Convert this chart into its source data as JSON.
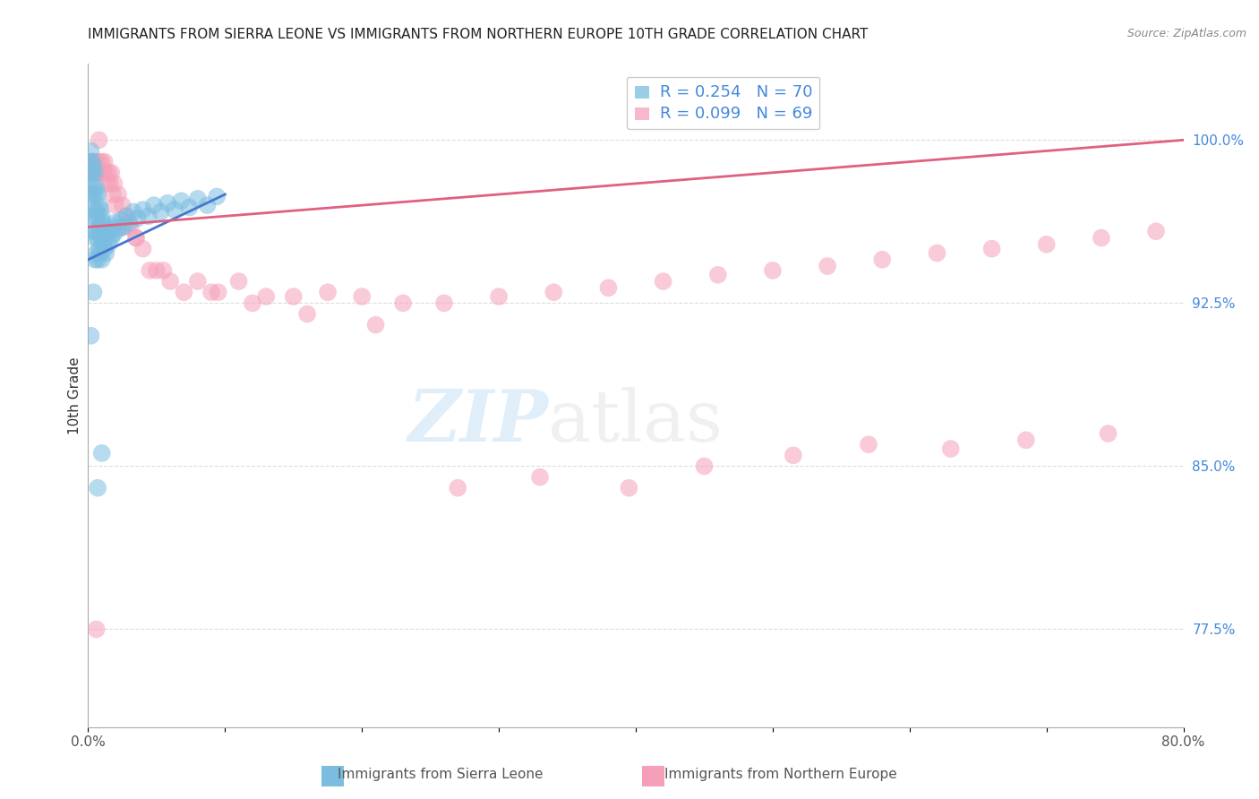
{
  "title": "IMMIGRANTS FROM SIERRA LEONE VS IMMIGRANTS FROM NORTHERN EUROPE 10TH GRADE CORRELATION CHART",
  "source": "Source: ZipAtlas.com",
  "ylabel": "10th Grade",
  "right_ytick_labels": [
    "100.0%",
    "92.5%",
    "85.0%",
    "77.5%"
  ],
  "right_ytick_values": [
    1.0,
    0.925,
    0.85,
    0.775
  ],
  "legend_entry_1": "R = 0.254   N = 70",
  "legend_entry_2": "R = 0.099   N = 69",
  "sierra_leone_color": "#7bbde0",
  "northern_europe_color": "#f5a0b8",
  "sierra_leone_line_color": "#4477cc",
  "northern_europe_line_color": "#e06080",
  "background_color": "#ffffff",
  "grid_color": "#dddddd",
  "title_fontsize": 11,
  "xlim": [
    0.0,
    0.8
  ],
  "ylim": [
    0.73,
    1.035
  ],
  "sl_line_x0": 0.0,
  "sl_line_y0": 0.945,
  "sl_line_x1": 0.1,
  "sl_line_y1": 0.975,
  "ne_line_x0": 0.0,
  "ne_line_y0": 0.96,
  "ne_line_x1": 0.8,
  "ne_line_y1": 1.0,
  "sierra_leone_x": [
    0.001,
    0.001,
    0.002,
    0.002,
    0.002,
    0.003,
    0.003,
    0.003,
    0.003,
    0.004,
    0.004,
    0.004,
    0.004,
    0.005,
    0.005,
    0.005,
    0.005,
    0.005,
    0.006,
    0.006,
    0.006,
    0.006,
    0.007,
    0.007,
    0.007,
    0.007,
    0.008,
    0.008,
    0.008,
    0.009,
    0.009,
    0.009,
    0.01,
    0.01,
    0.01,
    0.011,
    0.011,
    0.012,
    0.012,
    0.013,
    0.013,
    0.014,
    0.015,
    0.016,
    0.017,
    0.018,
    0.019,
    0.02,
    0.022,
    0.024,
    0.026,
    0.028,
    0.03,
    0.033,
    0.036,
    0.04,
    0.044,
    0.048,
    0.053,
    0.058,
    0.063,
    0.068,
    0.074,
    0.08,
    0.087,
    0.094,
    0.01,
    0.007,
    0.004,
    0.002
  ],
  "sierra_leone_y": [
    0.99,
    0.98,
    0.995,
    0.985,
    0.975,
    0.99,
    0.985,
    0.975,
    0.965,
    0.988,
    0.978,
    0.968,
    0.958,
    0.985,
    0.975,
    0.965,
    0.955,
    0.945,
    0.978,
    0.968,
    0.958,
    0.948,
    0.975,
    0.965,
    0.955,
    0.945,
    0.97,
    0.96,
    0.95,
    0.968,
    0.958,
    0.948,
    0.965,
    0.955,
    0.945,
    0.962,
    0.952,
    0.96,
    0.95,
    0.958,
    0.948,
    0.955,
    0.952,
    0.958,
    0.955,
    0.96,
    0.957,
    0.962,
    0.959,
    0.963,
    0.96,
    0.965,
    0.962,
    0.967,
    0.964,
    0.968,
    0.965,
    0.97,
    0.967,
    0.971,
    0.968,
    0.972,
    0.969,
    0.973,
    0.97,
    0.974,
    0.856,
    0.84,
    0.93,
    0.91
  ],
  "northern_europe_x": [
    0.002,
    0.003,
    0.004,
    0.005,
    0.006,
    0.007,
    0.008,
    0.009,
    0.01,
    0.011,
    0.012,
    0.013,
    0.014,
    0.015,
    0.016,
    0.017,
    0.018,
    0.019,
    0.02,
    0.022,
    0.025,
    0.028,
    0.031,
    0.035,
    0.04,
    0.045,
    0.05,
    0.06,
    0.07,
    0.08,
    0.095,
    0.11,
    0.13,
    0.15,
    0.175,
    0.2,
    0.23,
    0.26,
    0.3,
    0.34,
    0.38,
    0.42,
    0.46,
    0.5,
    0.54,
    0.58,
    0.62,
    0.66,
    0.7,
    0.74,
    0.78,
    0.025,
    0.035,
    0.055,
    0.09,
    0.12,
    0.16,
    0.21,
    0.27,
    0.33,
    0.395,
    0.45,
    0.515,
    0.57,
    0.63,
    0.685,
    0.745,
    0.008,
    0.006
  ],
  "northern_europe_y": [
    0.99,
    0.985,
    0.99,
    0.985,
    0.99,
    0.985,
    0.99,
    0.985,
    0.99,
    0.985,
    0.99,
    0.985,
    0.98,
    0.985,
    0.98,
    0.985,
    0.975,
    0.98,
    0.97,
    0.975,
    0.97,
    0.965,
    0.96,
    0.955,
    0.95,
    0.94,
    0.94,
    0.935,
    0.93,
    0.935,
    0.93,
    0.935,
    0.928,
    0.928,
    0.93,
    0.928,
    0.925,
    0.925,
    0.928,
    0.93,
    0.932,
    0.935,
    0.938,
    0.94,
    0.942,
    0.945,
    0.948,
    0.95,
    0.952,
    0.955,
    0.958,
    0.96,
    0.955,
    0.94,
    0.93,
    0.925,
    0.92,
    0.915,
    0.84,
    0.845,
    0.84,
    0.85,
    0.855,
    0.86,
    0.858,
    0.862,
    0.865,
    1.0,
    0.775
  ]
}
